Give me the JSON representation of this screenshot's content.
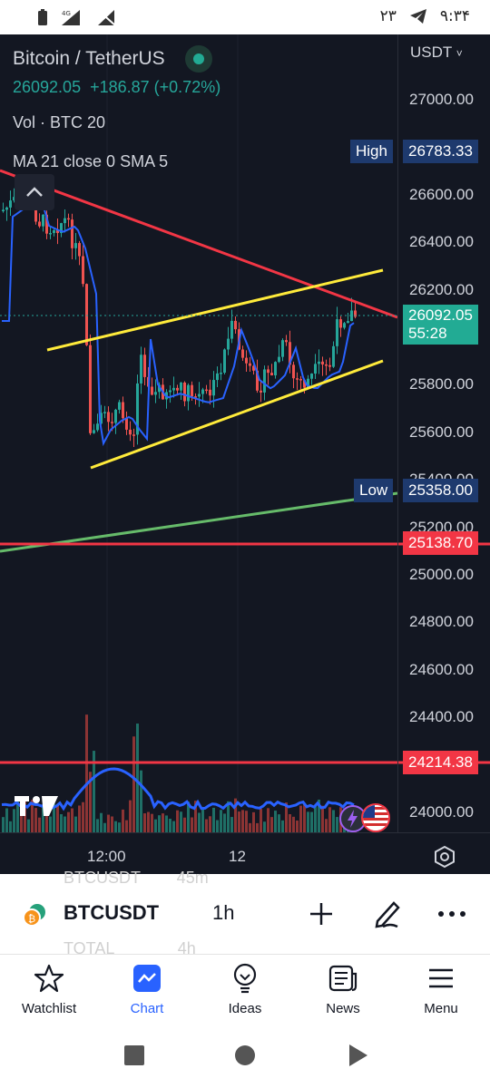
{
  "status_bar": {
    "time": "۹:۳۴",
    "notification_count": "۲۳",
    "network": "4G"
  },
  "chart": {
    "symbol_title": "Bitcoin / TetherUS",
    "last_price": "26092.05",
    "change": "+186.87 (+0.72%)",
    "volume_label": "Vol · BTC 20",
    "ma_label": "MA 21 close 0 SMA 5",
    "currency": "USDT",
    "currency_chevron": "˅",
    "price_ticks": [
      "27000.00",
      "26600.00",
      "26400.00",
      "26200.00",
      "25800.00",
      "25600.00",
      "25400.00",
      "25200.00",
      "25000.00",
      "24800.00",
      "24600.00",
      "24400.00",
      "24000.00"
    ],
    "high_label": "High",
    "high_value": "26783.33",
    "current_price_tag": "26092.05",
    "countdown": "55:28",
    "low_label": "Low",
    "low_value": "25358.00",
    "level_1": "25138.70",
    "level_2": "24214.38",
    "time_labels": [
      "12:00",
      "12"
    ],
    "colors": {
      "background": "#131722",
      "up": "#26a69a",
      "down": "#ef5350",
      "ma": "#2962ff",
      "trend_red": "#f23645",
      "channel": "#ffeb3b",
      "trend_green": "#4caf50"
    }
  },
  "symbol_bar": {
    "ghost_top": "BTCUSDT        45m",
    "ghost_bottom": "TOTAL              4h",
    "symbol": "BTCUSDT",
    "interval": "1h"
  },
  "nav": {
    "items": [
      {
        "label": "Watchlist",
        "icon": "star-icon"
      },
      {
        "label": "Chart",
        "icon": "chart-icon"
      },
      {
        "label": "Ideas",
        "icon": "lightbulb-icon"
      },
      {
        "label": "News",
        "icon": "news-icon"
      },
      {
        "label": "Menu",
        "icon": "menu-icon"
      }
    ],
    "active": "Chart",
    "active_color": "#2962ff"
  }
}
